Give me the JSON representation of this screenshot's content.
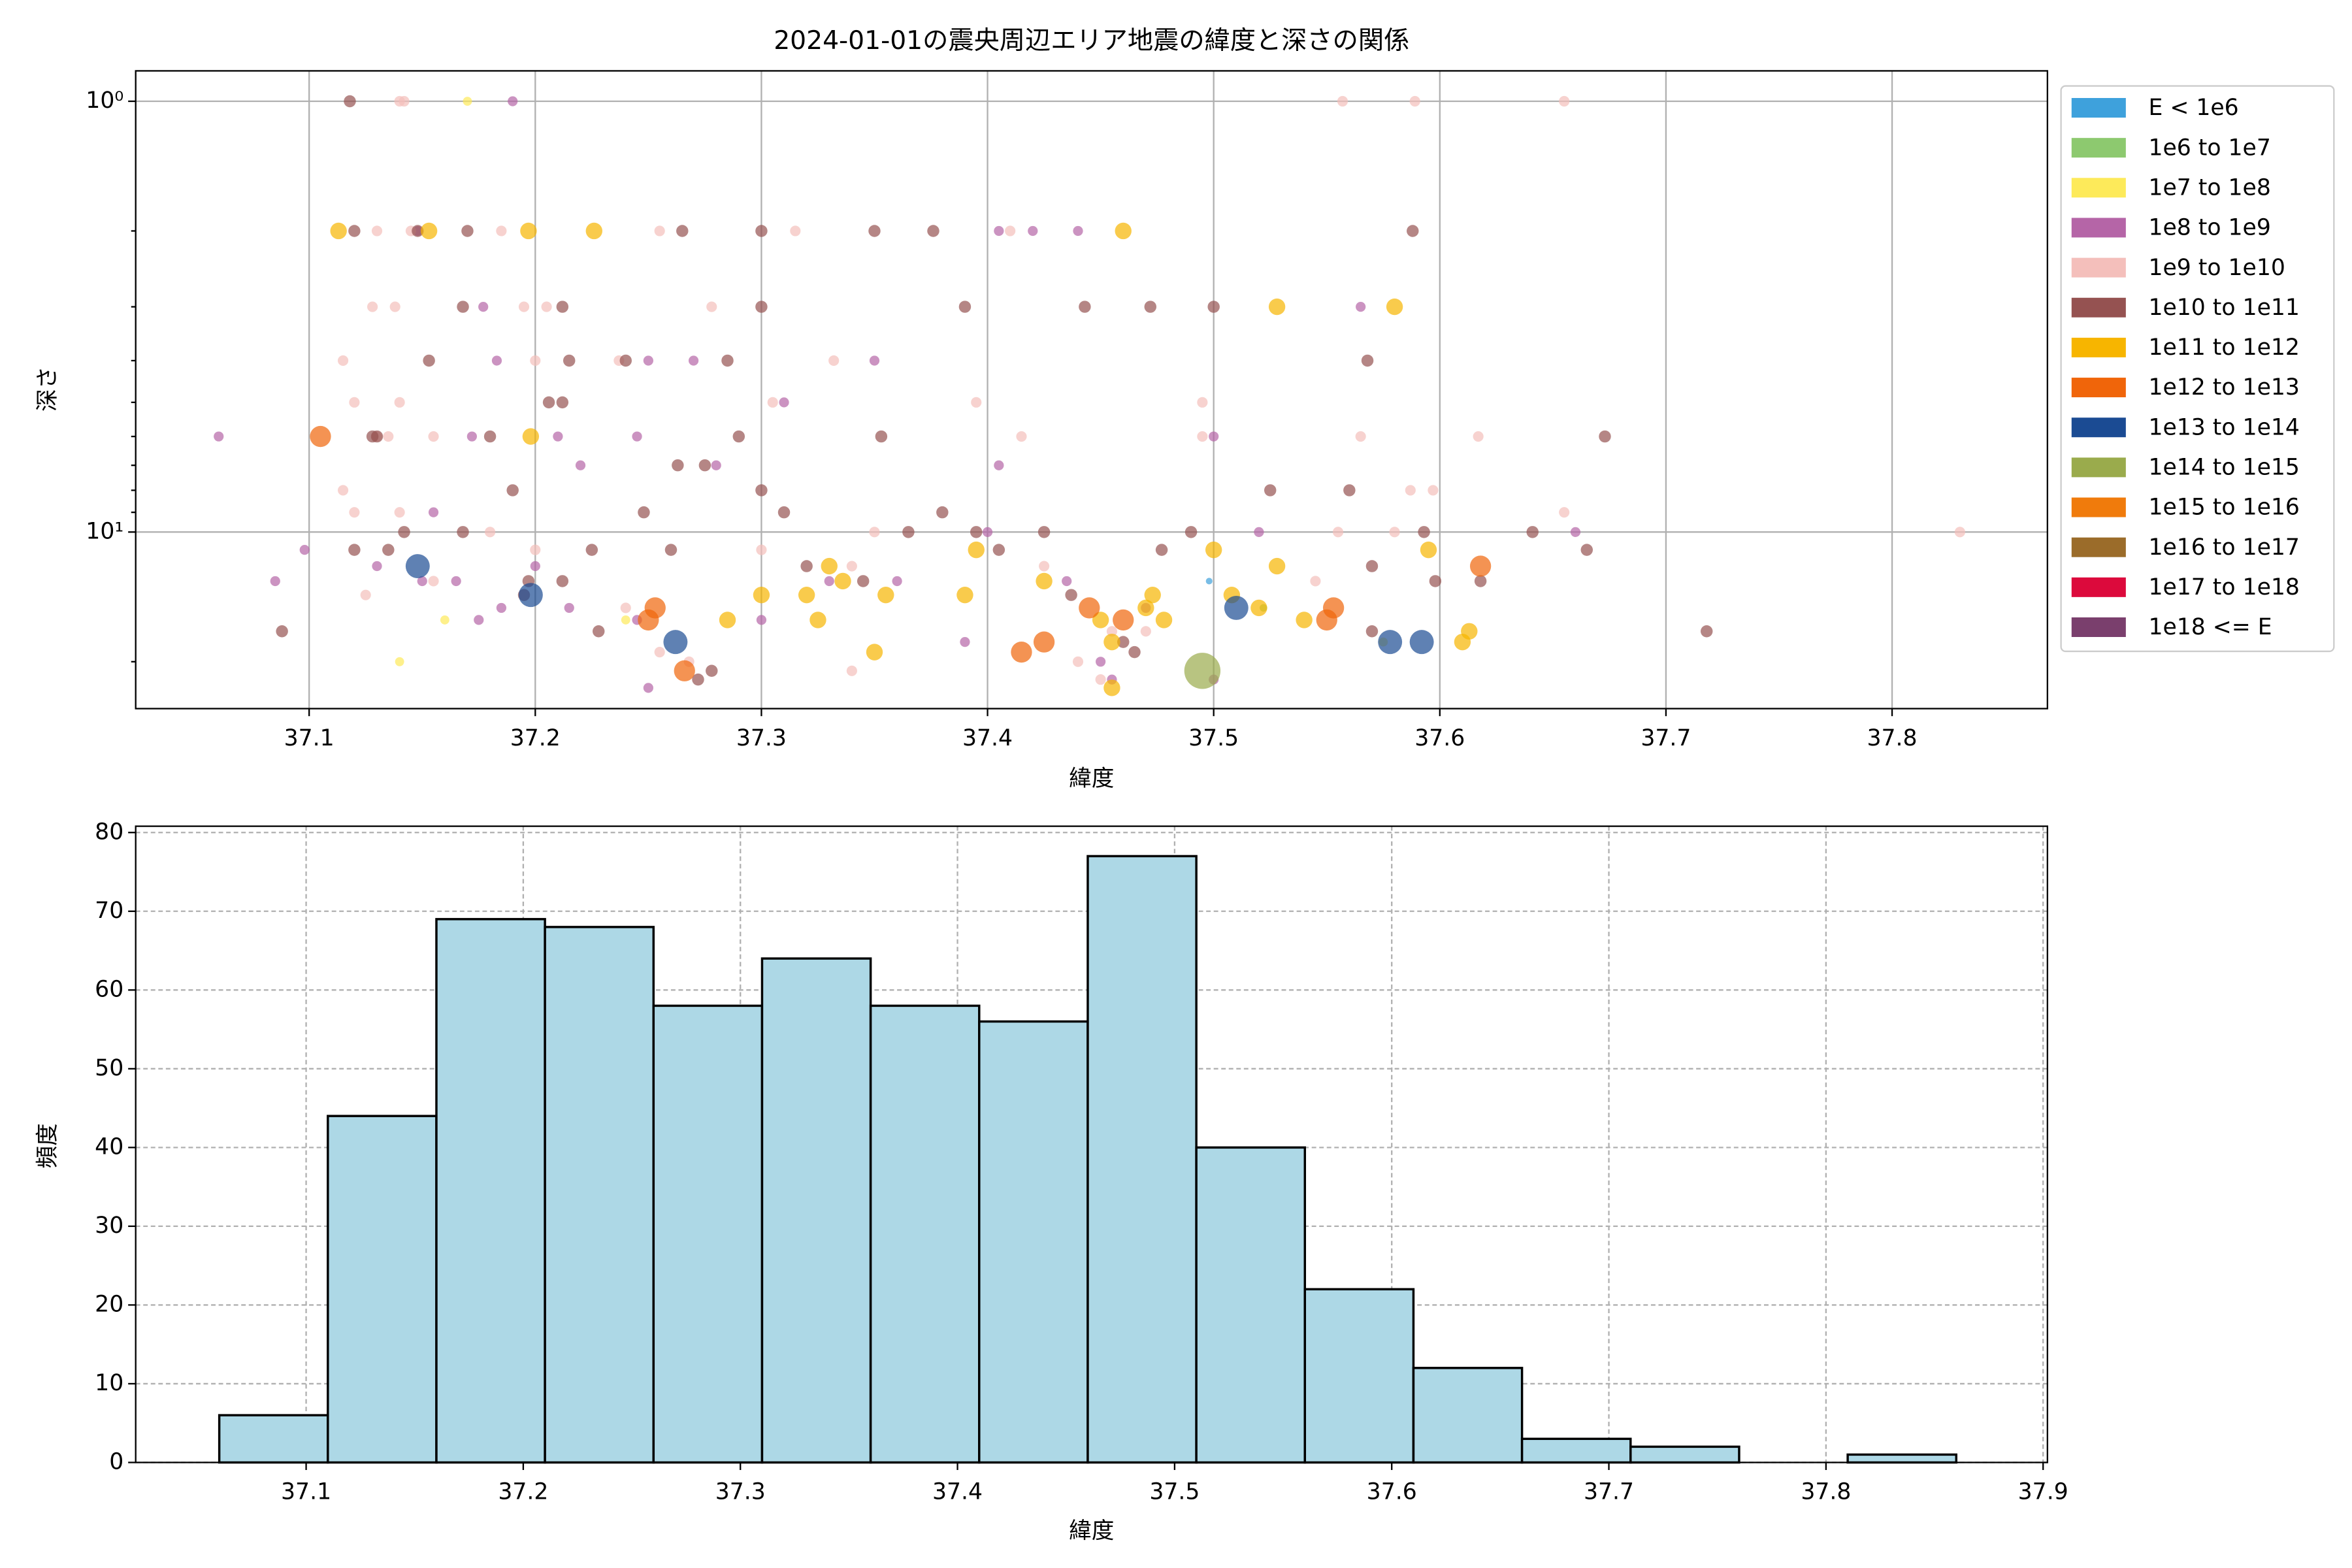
{
  "chart_data": [
    {
      "type": "scatter",
      "title": "2024-01-01の震央周辺エリア地震の緯度と深さの関係",
      "x_label": "緯度",
      "y_label": "深さ",
      "xlim": [
        37.0233,
        37.8687
      ],
      "xticks": [
        37.1,
        37.2,
        37.3,
        37.4,
        37.5,
        37.6,
        37.7,
        37.8
      ],
      "ylim": [
        0.85,
        25.7
      ],
      "yscale": "log",
      "y_inverted": true,
      "yticks": [
        {
          "value": 1,
          "label": "10⁰"
        },
        {
          "value": 10,
          "label": "10¹"
        }
      ],
      "yminorticks": [
        2,
        3,
        4,
        5,
        6,
        7,
        8,
        9,
        20
      ],
      "grid": true,
      "legend": "outside upper right",
      "series": [
        {
          "name": "E < 1e6",
          "color": "#3ea1dc",
          "x": [
            37.498
          ],
          "y": [
            13
          ]
        },
        {
          "name": "1e6 to 1e7",
          "color": "#8dc96f",
          "x": [
            37.522
          ],
          "y": [
            15
          ]
        },
        {
          "name": "1e7 to 1e8",
          "color": "#fdea5a",
          "x": [
            37.17,
            37.14,
            37.16,
            37.24,
            37.575
          ],
          "y": [
            1,
            20,
            16,
            16,
            18
          ]
        },
        {
          "name": "1e8 to 1e9",
          "color": "#b565a7",
          "x": [
            37.06,
            37.085,
            37.098,
            37.148,
            37.177,
            37.165,
            37.19,
            37.183,
            37.172,
            37.13,
            37.21,
            37.245,
            37.22,
            37.25,
            37.25,
            37.28,
            37.31,
            37.35,
            37.33,
            37.36,
            37.4,
            37.405,
            37.44,
            37.42,
            37.405,
            37.435,
            37.45,
            37.455,
            37.47,
            37.5,
            37.5,
            37.52,
            37.565,
            37.3,
            37.27,
            37.66,
            37.39,
            37.2,
            37.215,
            37.185,
            37.245,
            37.15,
            37.155,
            37.175
          ],
          "y": [
            6,
            13,
            11,
            2,
            3,
            13,
            1,
            4,
            6,
            12,
            6,
            6,
            7,
            4,
            23,
            7,
            5,
            4,
            13,
            13,
            10,
            7,
            2,
            2,
            2,
            13,
            20,
            22,
            15,
            6,
            22,
            10,
            3,
            16,
            4,
            10,
            18,
            12,
            15,
            15,
            16,
            13,
            9,
            16
          ]
        },
        {
          "name": "1e9 to 1e10",
          "color": "#f4bfbb",
          "x": [
            37.14,
            37.142,
            37.557,
            37.589,
            37.655,
            37.13,
            37.145,
            37.185,
            37.255,
            37.315,
            37.41,
            37.138,
            37.128,
            37.195,
            37.205,
            37.278,
            37.332,
            37.115,
            37.2,
            37.237,
            37.12,
            37.14,
            37.305,
            37.395,
            37.495,
            37.13,
            37.135,
            37.155,
            37.415,
            37.495,
            37.565,
            37.617,
            37.115,
            37.12,
            37.14,
            37.155,
            37.125,
            37.83,
            37.597,
            37.655,
            37.58,
            37.47,
            37.44,
            37.45,
            37.35,
            37.34,
            37.3,
            37.2,
            37.18,
            37.24,
            37.268,
            37.255,
            37.34,
            37.425,
            37.455,
            37.545,
            37.555,
            37.587
          ],
          "y": [
            1,
            1,
            1,
            1,
            1,
            2,
            2,
            2,
            2,
            2,
            2,
            3,
            3,
            3,
            3,
            3,
            4,
            4,
            4,
            4,
            5,
            5,
            5,
            5,
            5,
            6,
            6,
            6,
            6,
            6,
            6,
            6,
            8,
            9,
            9,
            13,
            14,
            10,
            8,
            9,
            10,
            17,
            20,
            22,
            10,
            12,
            11,
            11,
            10,
            15,
            20,
            19,
            21,
            12,
            17,
            13,
            10,
            8
          ]
        },
        {
          "name": "1e10 to 1e11",
          "color": "#955251",
          "x": [
            37.118,
            37.12,
            37.17,
            37.148,
            37.265,
            37.3,
            37.35,
            37.376,
            37.588,
            37.168,
            37.212,
            37.3,
            37.39,
            37.443,
            37.472,
            37.5,
            37.153,
            37.215,
            37.24,
            37.285,
            37.568,
            37.128,
            37.18,
            37.206,
            37.29,
            37.353,
            37.673,
            37.212,
            37.263,
            37.12,
            37.13,
            37.135,
            37.142,
            37.168,
            37.197,
            37.195,
            37.19,
            37.212,
            37.225,
            37.248,
            37.26,
            37.275,
            37.3,
            37.31,
            37.32,
            37.345,
            37.365,
            37.38,
            37.395,
            37.405,
            37.425,
            37.437,
            37.465,
            37.477,
            37.49,
            37.525,
            37.56,
            37.57,
            37.593,
            37.598,
            37.618,
            37.641,
            37.665,
            37.718,
            37.088,
            37.272,
            37.278,
            37.228,
            37.46,
            37.57
          ],
          "y": [
            1,
            2,
            2,
            2,
            2,
            2,
            2,
            2,
            2,
            3,
            3,
            3,
            3,
            3,
            3,
            3,
            4,
            4,
            4,
            4,
            4,
            6,
            6,
            5,
            6,
            6,
            6,
            5,
            7,
            11,
            6,
            11,
            10,
            10,
            13,
            14,
            8,
            13,
            11,
            9,
            11,
            7,
            8,
            9,
            12,
            13,
            10,
            9,
            10,
            11,
            10,
            14,
            19,
            11,
            10,
            8,
            8,
            12,
            10,
            13,
            13,
            10,
            11,
            17,
            17,
            22,
            21,
            17,
            18,
            17
          ]
        },
        {
          "name": "1e11 to 1e12",
          "color": "#f7b500",
          "x": [
            37.113,
            37.153,
            37.197,
            37.226,
            37.46,
            37.528,
            37.58,
            37.198,
            37.33,
            37.425,
            37.528,
            37.595,
            37.613,
            37.61,
            37.3,
            37.32,
            37.355,
            37.336,
            37.39,
            37.473,
            37.478,
            37.455,
            37.47,
            37.5,
            37.508,
            37.54,
            37.52,
            37.455,
            37.35,
            37.285,
            37.325,
            37.395,
            37.45
          ],
          "y": [
            2,
            2,
            2,
            2,
            2,
            3,
            3,
            6,
            12,
            13,
            12,
            11,
            17,
            18,
            14,
            14,
            14,
            13,
            14,
            14,
            16,
            18,
            15,
            11,
            14,
            16,
            15,
            23,
            19,
            16,
            16,
            11,
            16
          ]
        },
        {
          "name": "1e12 to 1e13",
          "color": "#f0650a",
          "x": [
            37.105,
            37.25,
            37.253,
            37.266,
            37.415,
            37.425,
            37.445,
            37.46,
            37.55,
            37.553,
            37.618
          ],
          "y": [
            6,
            16,
            15,
            21,
            19,
            18,
            15,
            16,
            16,
            15,
            12
          ]
        },
        {
          "name": "1e13 to 1e14",
          "color": "#1b4b93",
          "x": [
            37.148,
            37.198,
            37.262,
            37.51,
            37.578,
            37.592
          ],
          "y": [
            12,
            14,
            18,
            15,
            18,
            18
          ]
        },
        {
          "name": "1e14 to 1e15",
          "color": "#9aab4c",
          "x": [
            37.495
          ],
          "y": [
            21
          ]
        },
        {
          "name": "1e15 to 1e16",
          "color": "#f07b0c",
          "x": [],
          "y": []
        },
        {
          "name": "1e16 to 1e17",
          "color": "#9b6c2a",
          "x": [],
          "y": []
        },
        {
          "name": "1e17 to 1e18",
          "color": "#dc0a3c",
          "x": [],
          "y": []
        },
        {
          "name": "1e18 <= E",
          "color": "#7a3f6d",
          "x": [],
          "y": []
        }
      ]
    },
    {
      "type": "histogram",
      "x_label": "緯度",
      "y_label": "頻度",
      "color": "#add8e6",
      "edgecolor": "#000000",
      "bins": [
        37.06,
        37.11,
        37.16,
        37.21,
        37.26,
        37.31,
        37.36,
        37.41,
        37.46,
        37.51,
        37.56,
        37.61,
        37.66,
        37.71,
        37.76,
        37.81,
        37.86
      ],
      "values": [
        6,
        44,
        69,
        68,
        58,
        64,
        58,
        56,
        77,
        40,
        22,
        12,
        3,
        2,
        0,
        1
      ],
      "xlim": [
        37.0215,
        37.902
      ],
      "xticks": [
        37.1,
        37.2,
        37.3,
        37.4,
        37.5,
        37.6,
        37.7,
        37.8,
        37.9
      ],
      "ylim": [
        0,
        80.8
      ],
      "yticks": [
        0,
        10,
        20,
        30,
        40,
        50,
        60,
        70,
        80
      ],
      "grid": "dashed"
    }
  ]
}
